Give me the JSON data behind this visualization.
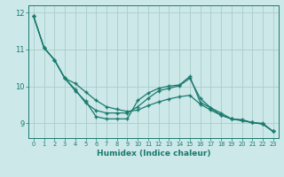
{
  "xlabel": "Humidex (Indice chaleur)",
  "bg_color": "#cce8e8",
  "line_color": "#1a7a6e",
  "grid_color": "#aacccc",
  "xlim": [
    -0.5,
    23.5
  ],
  "ylim": [
    8.6,
    12.2
  ],
  "yticks": [
    9,
    10,
    11,
    12
  ],
  "xticks": [
    0,
    1,
    2,
    3,
    4,
    5,
    6,
    7,
    8,
    9,
    10,
    11,
    12,
    13,
    14,
    15,
    16,
    17,
    18,
    19,
    20,
    21,
    22,
    23
  ],
  "s1": [
    11.9,
    11.05,
    10.72,
    10.22,
    9.88,
    9.6,
    9.18,
    9.12,
    9.12,
    9.12,
    9.62,
    9.82,
    9.95,
    10.01,
    10.04,
    10.27,
    9.57,
    9.42,
    9.22,
    9.12,
    9.1,
    9.02,
    9.0,
    8.78
  ],
  "s2": [
    11.9,
    11.05,
    10.72,
    10.22,
    10.08,
    9.85,
    9.62,
    9.45,
    9.38,
    9.32,
    9.36,
    9.48,
    9.58,
    9.66,
    9.72,
    9.76,
    9.52,
    9.36,
    9.22,
    9.12,
    9.07,
    9.02,
    8.98,
    8.78
  ],
  "s3": [
    11.9,
    11.05,
    10.72,
    10.22,
    9.92,
    9.55,
    9.35,
    9.28,
    9.28,
    9.28,
    9.45,
    9.68,
    9.88,
    9.95,
    10.02,
    10.22,
    9.68,
    9.42,
    9.28,
    9.12,
    9.08,
    9.02,
    8.98,
    8.78
  ]
}
